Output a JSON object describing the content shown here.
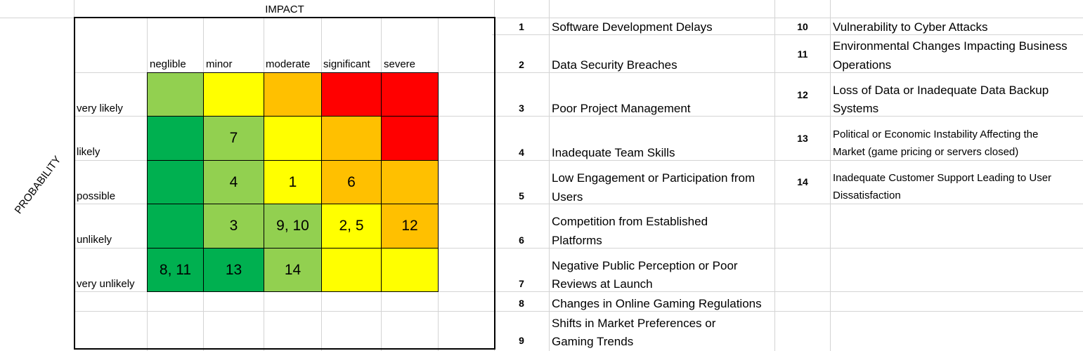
{
  "matrix": {
    "impact_title": "IMPACT",
    "probability_title": "PROBABILITY",
    "impact_levels": [
      "neglible",
      "minor",
      "moderate",
      "significant",
      "severe"
    ],
    "probability_levels": [
      "very likely",
      "likely",
      "possible",
      "unlikely",
      "very unlikely"
    ],
    "colors": {
      "dark_green": "#00b050",
      "light_green": "#92d050",
      "yellow": "#ffff00",
      "orange": "#ffc000",
      "red": "#ff0000"
    },
    "rows": [
      {
        "cells": [
          {
            "color": "#92d050",
            "text": ""
          },
          {
            "color": "#ffff00",
            "text": ""
          },
          {
            "color": "#ffc000",
            "text": ""
          },
          {
            "color": "#ff0000",
            "text": ""
          },
          {
            "color": "#ff0000",
            "text": ""
          }
        ]
      },
      {
        "cells": [
          {
            "color": "#00b050",
            "text": ""
          },
          {
            "color": "#92d050",
            "text": "7"
          },
          {
            "color": "#ffff00",
            "text": ""
          },
          {
            "color": "#ffc000",
            "text": ""
          },
          {
            "color": "#ff0000",
            "text": ""
          }
        ]
      },
      {
        "cells": [
          {
            "color": "#00b050",
            "text": ""
          },
          {
            "color": "#92d050",
            "text": "4"
          },
          {
            "color": "#ffff00",
            "text": "1"
          },
          {
            "color": "#ffc000",
            "text": "6"
          },
          {
            "color": "#ffc000",
            "text": ""
          }
        ]
      },
      {
        "cells": [
          {
            "color": "#00b050",
            "text": ""
          },
          {
            "color": "#92d050",
            "text": "3"
          },
          {
            "color": "#92d050",
            "text": "9, 10"
          },
          {
            "color": "#ffff00",
            "text": "2, 5"
          },
          {
            "color": "#ffc000",
            "text": "12"
          }
        ]
      },
      {
        "cells": [
          {
            "color": "#00b050",
            "text": "8, 11"
          },
          {
            "color": "#00b050",
            "text": "13"
          },
          {
            "color": "#92d050",
            "text": "14"
          },
          {
            "color": "#ffff00",
            "text": ""
          },
          {
            "color": "#ffff00",
            "text": ""
          }
        ]
      }
    ]
  },
  "risks_left": [
    {
      "num": "1",
      "text": [
        "Software Development Delays"
      ]
    },
    {
      "num": "2",
      "text": [
        "Data Security Breaches"
      ]
    },
    {
      "num": "3",
      "text": [
        "Poor Project Management"
      ]
    },
    {
      "num": "4",
      "text": [
        "Inadequate Team Skills"
      ]
    },
    {
      "num": "5",
      "text": [
        "Low Engagement or Participation from",
        "Users"
      ]
    },
    {
      "num": "6",
      "text": [
        "Competition from Established",
        "Platforms"
      ]
    },
    {
      "num": "7",
      "text": [
        "Negative Public Perception or Poor",
        "Reviews at Launch"
      ]
    },
    {
      "num": "8",
      "text": [
        "Changes in Online Gaming Regulations"
      ]
    },
    {
      "num": "9",
      "text": [
        "Shifts in Market Preferences or",
        "Gaming Trends"
      ]
    }
  ],
  "risks_right": [
    {
      "num": "10",
      "text": [
        "Vulnerability to Cyber Attacks"
      ]
    },
    {
      "num": "11",
      "text": [
        "Environmental Changes Impacting Business",
        "Operations"
      ]
    },
    {
      "num": "12",
      "text": [
        "Loss of Data or Inadequate Data Backup",
        "Systems"
      ]
    },
    {
      "num": "13",
      "text": [
        "Political or Economic Instability Affecting the",
        "Market (game pricing or servers closed)"
      ]
    },
    {
      "num": "14",
      "text": [
        "Inadequate Customer Support Leading to User",
        "Dissatisfaction"
      ]
    }
  ]
}
